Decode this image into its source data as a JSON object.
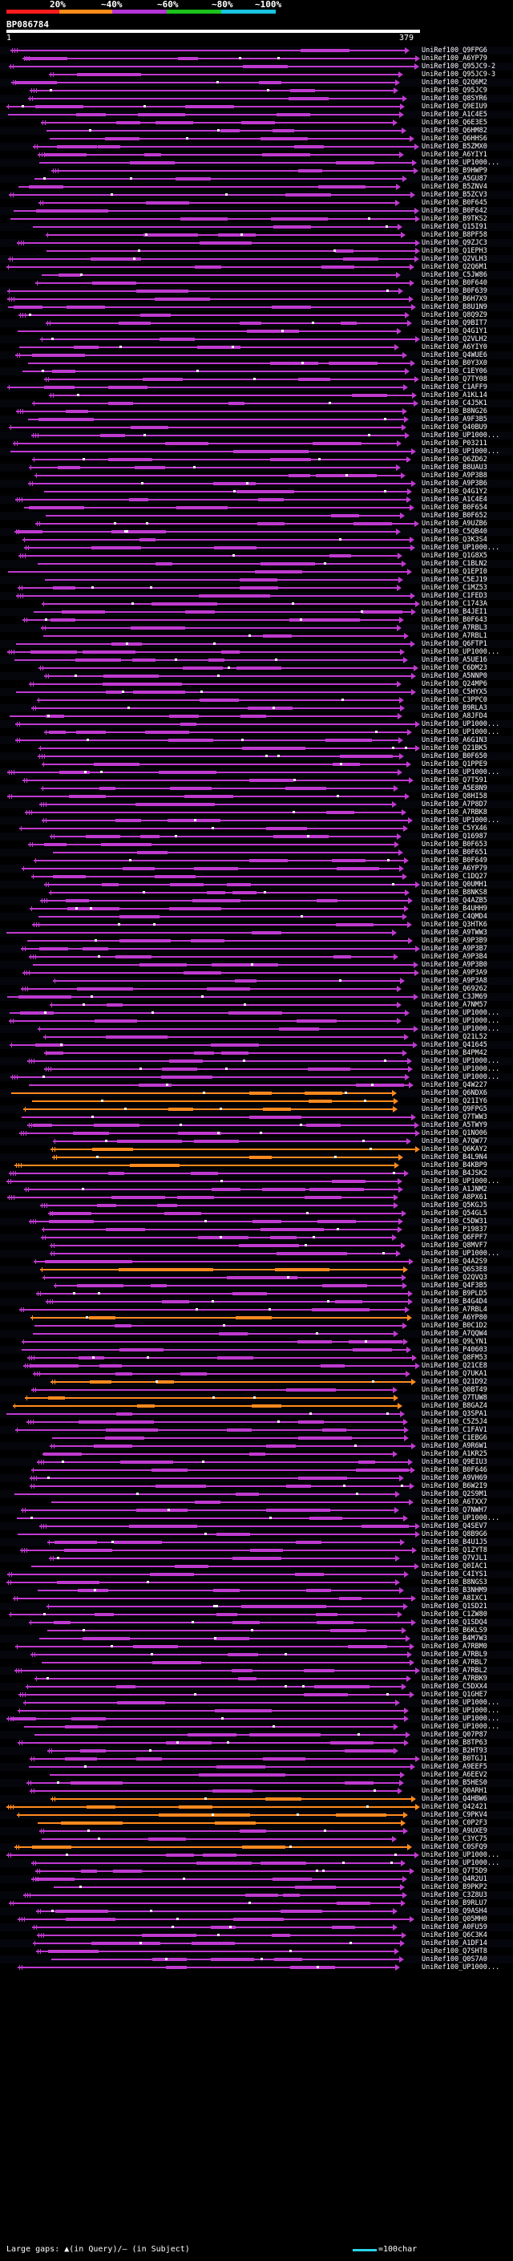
{
  "scale": {
    "labels": [
      "20%",
      "~40%",
      "~60%",
      "~80%",
      "~100%"
    ],
    "colors": [
      "#ff1c1c",
      "#ff8c1a",
      "#b535d8",
      "#1cc21c",
      "#19c4e0"
    ]
  },
  "query": {
    "id": "BP086784",
    "start": "1",
    "end": "379"
  },
  "colors": {
    "main": "#c03ad0",
    "alt": "#ff8a1e",
    "tick": "#e04ff0",
    "dot": "#ffffff"
  },
  "hits": [
    "UniRef100_Q9FPG6",
    "UniRef100_A6YP79",
    "UniRef100_Q95JC9-2",
    "UniRef100_Q95JC9-3",
    "UniRef100_Q2Q6M2",
    "UniRef100_Q95JC9",
    "UniRef100_Q8SYR6",
    "UniRef100_Q9EIU9",
    "UniRef100_A1C4E5",
    "UniRef100_Q6E3E5",
    "UniRef100_Q6HM82",
    "UniRef100_Q6HHS6",
    "UniRef100_B5ZMX0",
    "UniRef100_A6YIY1",
    "UniRef100_UP1000...",
    "UniRef100_B9HWP9",
    "UniRef100_A5GU87",
    "UniRef100_B5ZNV4",
    "UniRef100_B5ZCV3",
    "UniRef100_B0F645",
    "UniRef100_B0F642",
    "UniRef100_B9TKS2",
    "UniRef100_Q15I91",
    "UniRef100_B8PF58",
    "UniRef100_Q9ZJC3",
    "UniRef100_Q1EPH3",
    "UniRef100_Q2VLH3",
    "UniRef100_Q2Q6M1",
    "UniRef100_C5JW86",
    "UniRef100_B0F640",
    "UniRef100_B0F639",
    "UniRef100_B6H7X9",
    "UniRef100_B8U1N9",
    "UniRef100_Q8Q9Z9",
    "UniRef100_Q9BIT7",
    "UniRef100_Q4G1Y1",
    "UniRef100_Q2VLH2",
    "UniRef100_A6YIY0",
    "UniRef100_Q4WUE6",
    "UniRef100_B0Y3X0",
    "UniRef100_C1EY06",
    "UniRef100_Q7TY08",
    "UniRef100_C1AFF9",
    "UniRef100_A1KL14",
    "UniRef100_C4J5K1",
    "UniRef100_B8NG26",
    "UniRef100_A9F3B5",
    "UniRef100_Q40BU9",
    "UniRef100_UP1000...",
    "UniRef100_P03211",
    "UniRef100_UP1000...",
    "UniRef100_Q6ZD62",
    "UniRef100_B8UAU3",
    "UniRef100_A9P3B8",
    "UniRef100_A9P3B6",
    "UniRef100_Q4G1Y2",
    "UniRef100_A1C4E4",
    "UniRef100_B0F654",
    "UniRef100_B0F652",
    "UniRef100_A9UZB6",
    "UniRef100_C5QB40",
    "UniRef100_Q3K3S4",
    "UniRef100_UP1000...",
    "UniRef100_Q1G8X5",
    "UniRef100_C1BLN2",
    "UniRef100_Q1EPI0",
    "UniRef100_C5EJ19",
    "UniRef100_C1MZ53",
    "UniRef100_C1FED3",
    "UniRef100_C1743A",
    "UniRef100_B4JEI1",
    "UniRef100_B0F643",
    "UniRef100_A7RBL3",
    "UniRef100_A7RBL1",
    "UniRef100_Q6FTP1",
    "UniRef100_UP1000...",
    "UniRef100_A5UE16",
    "UniRef100_C6DM23",
    "UniRef100_A5NNP0",
    "UniRef100_Q24MP6",
    "UniRef100_C5HYX5",
    "UniRef100_C3PPC0",
    "UniRef100_B9RLA3",
    "UniRef100_A8JFD4",
    "UniRef100_UP1000...",
    "UniRef100_UP1000...",
    "UniRef100_A6G1N3",
    "UniRef100_Q21BK5",
    "UniRef100_B0F650",
    "UniRef100_Q1PPE9",
    "UniRef100_UP1000...",
    "UniRef100_Q7T591",
    "UniRef100_A5E8N9",
    "UniRef100_Q8HI58",
    "UniRef100_A7P8D7",
    "UniRef100_A7RBK8",
    "UniRef100_UP1000...",
    "UniRef100_C5YX46",
    "UniRef100_Q16987",
    "UniRef100_B0F653",
    "UniRef100_B0F651",
    "UniRef100_B0F649",
    "UniRef100_A6YP79",
    "UniRef100_C1DQ27",
    "UniRef100_Q0UMH1",
    "UniRef100_B8NKS8",
    "UniRef100_Q4AZB5",
    "UniRef100_B4UHH9",
    "UniRef100_C4QMD4",
    "UniRef100_Q3HTK6",
    "UniRef100_A9TWW3",
    "UniRef100_A9P3B9",
    "UniRef100_A9P3B7",
    "UniRef100_A9P3B4",
    "UniRef100_A9P3B0",
    "UniRef100_A9P3A9",
    "UniRef100_A9P3A8",
    "UniRef100_Q69262",
    "UniRef100_C3JM69",
    "UniRef100_A7NM57",
    "UniRef100_UP1000...",
    "UniRef100_UP1000...",
    "UniRef100_UP1000...",
    "UniRef100_Q21L52",
    "UniRef100_Q41645",
    "UniRef100_B4PM42",
    "UniRef100_UP1000...",
    "UniRef100_UP1000...",
    "UniRef100_UP1000...",
    "UniRef100_Q4W227",
    "UniRef100_Q6NDX6",
    "UniRef100_Q21IY6",
    "UniRef100_Q9FPG5",
    "UniRef100_Q7TWW3",
    "UniRef100_A5TWY9",
    "UniRef100_Q1NO06",
    "UniRef100_A7QW77",
    "UniRef100_Q6KAY2",
    "UniRef100_B4L9N4",
    "UniRef100_B4KBP9",
    "UniRef100_B4JSK2",
    "UniRef100_UP1000...",
    "UniRef100_A1JNM2",
    "UniRef100_A8PX61",
    "UniRef100_Q5KGJ5",
    "UniRef100_Q54GL5",
    "UniRef100_C5DW31",
    "UniRef100_P19837",
    "UniRef100_Q6FPF7",
    "UniRef100_Q8MVF7",
    "UniRef100_UP1000...",
    "UniRef100_Q4A2S9",
    "UniRef100_Q6S3E8",
    "UniRef100_Q2QVQ3",
    "UniRef100_Q4F3B5",
    "UniRef100_B9PLD5",
    "UniRef100_B4G4D4",
    "UniRef100_A7RBL4",
    "UniRef100_A6YP80",
    "UniRef100_B0C1D2",
    "UniRef100_A7QQW4",
    "UniRef100_Q9LYN1",
    "UniRef100_P40603",
    "UniRef100_Q8FM53",
    "UniRef100_Q21CE8",
    "UniRef100_Q7UKA1",
    "UniRef100_Q21D92",
    "UniRef100_Q0BT49",
    "UniRef100_Q7TUW8",
    "UniRef100_B8GAZ4",
    "UniRef100_Q3SPA1",
    "UniRef100_C5Z5J4",
    "UniRef100_C1FAV1",
    "UniRef100_C1EBG6",
    "UniRef100_A9R6W1",
    "UniRef100_A1KR25",
    "UniRef100_Q9EIU3",
    "UniRef100_B0F646",
    "UniRef100_A9VH69",
    "UniRef100_B6W2I9",
    "UniRef100_Q2S9M1",
    "UniRef100_A6TXX7",
    "UniRef100_Q7NWH7",
    "UniRef100_UP1000...",
    "UniRef100_Q4SEV7",
    "UniRef100_Q8B9G6",
    "UniRef100_B4U1J5",
    "UniRef100_Q1ZYT8",
    "UniRef100_Q7VJL1",
    "UniRef100_Q0IAC1",
    "UniRef100_C4IYS1",
    "UniRef100_B8NGS3",
    "UniRef100_B3NHM9",
    "UniRef100_A8IXC1",
    "UniRef100_Q1SD21",
    "UniRef100_C1ZW80",
    "UniRef100_Q1SDQ4",
    "UniRef100_B6KLS9",
    "UniRef100_B4M7W3",
    "UniRef100_A7RBM0",
    "UniRef100_A7RBL9",
    "UniRef100_A7RBL7",
    "UniRef100_A7RBL2",
    "UniRef100_A7RBK9",
    "UniRef100_C5DXX4",
    "UniRef100_Q1GHE7",
    "UniRef100_UP1000...",
    "UniRef100_UP1000...",
    "UniRef100_UP1000...",
    "UniRef100_UP1000...",
    "UniRef100_Q07P87",
    "UniRef100_B8TP63",
    "UniRef100_B2HT93",
    "UniRef100_B0TGJ1",
    "UniRef100_A9EEF5",
    "UniRef100_A6EEV2",
    "UniRef100_B5HES0",
    "UniRef100_Q0ARH1",
    "UniRef100_Q4HBW6",
    "UniRef100_Q42421",
    "UniRef100_C9PKV4",
    "UniRef100_C0P2F3",
    "UniRef100_A9UXE9",
    "UniRef100_C3YC75",
    "UniRef100_C0SFQ9",
    "UniRef100_UP1000...",
    "UniRef100_UP1000...",
    "UniRef100_Q7T5D9",
    "UniRef100_Q4R2U1",
    "UniRef100_B9PKP2",
    "UniRef100_C3Z8U3",
    "UniRef100_B9RLU7",
    "UniRef100_Q9ASH4",
    "UniRef100_Q05MH0",
    "UniRef100_A0FU59",
    "UniRef100_Q6C3K4",
    "UniRef100_A1DF14",
    "UniRef100_Q7SHT8",
    "UniRef100_Q0S7A0",
    "UniRef100_UP1000..."
  ],
  "legend": {
    "gaps": "Large gaps: ▲(in Query)/– (in Subject)",
    "char": "=100char"
  }
}
